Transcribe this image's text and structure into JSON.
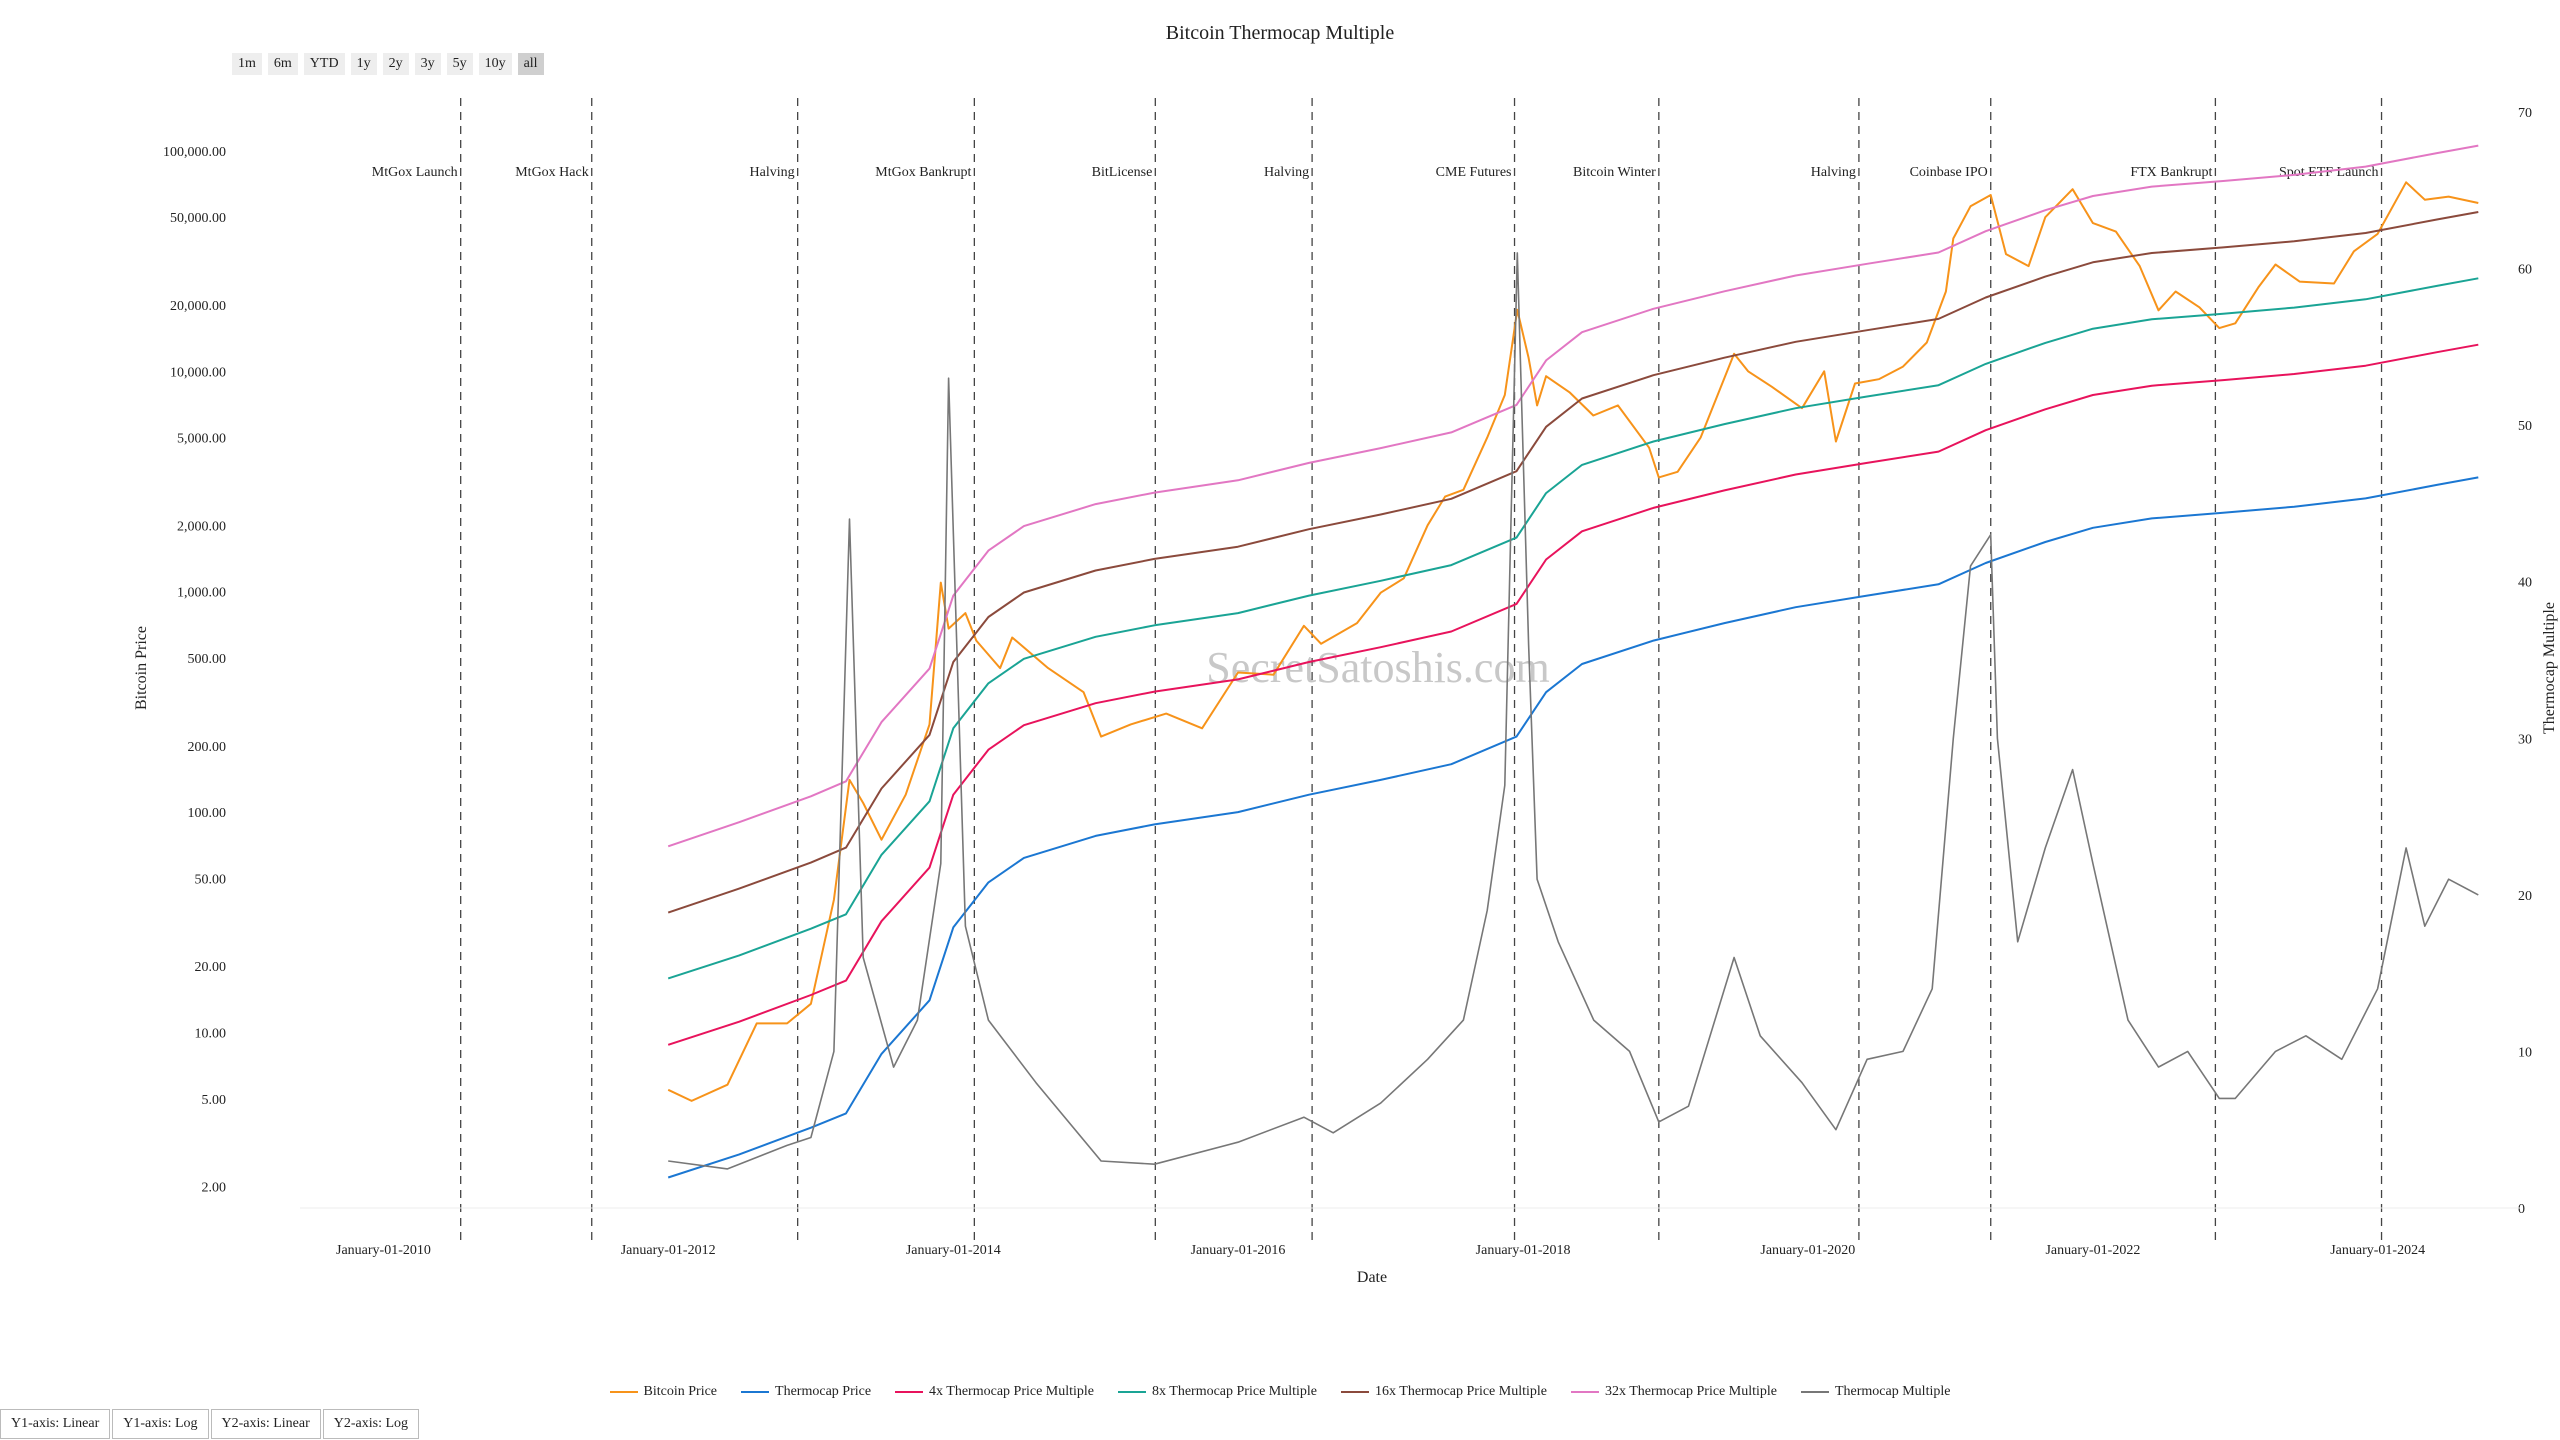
{
  "chart_data": {
    "type": "line",
    "title": "Bitcoin Thermocap Multiple",
    "xlabel": "Date",
    "ylabel": "Bitcoin Price",
    "y2label": "Thermocap Multiple",
    "y_scale": "log",
    "ylim": [
      1.6,
      150000
    ],
    "y2lim": [
      0,
      70
    ],
    "xlim": [
      "2009-06-01",
      "2024-12-31"
    ],
    "grid": false,
    "legend_position": "bottom-center",
    "watermark": "SecretSatoshis.com",
    "x_ticks": [
      {
        "date": "2010-01-01",
        "label": "January-01-2010"
      },
      {
        "date": "2012-01-01",
        "label": "January-01-2012"
      },
      {
        "date": "2014-01-01",
        "label": "January-01-2014"
      },
      {
        "date": "2016-01-01",
        "label": "January-01-2016"
      },
      {
        "date": "2018-01-01",
        "label": "January-01-2018"
      },
      {
        "date": "2020-01-01",
        "label": "January-01-2020"
      },
      {
        "date": "2022-01-01",
        "label": "January-01-2022"
      },
      {
        "date": "2024-01-01",
        "label": "January-01-2024"
      }
    ],
    "y_ticks": [
      {
        "value": 2,
        "label": "2.00"
      },
      {
        "value": 5,
        "label": "5.00"
      },
      {
        "value": 10,
        "label": "10.00"
      },
      {
        "value": 20,
        "label": "20.00"
      },
      {
        "value": 50,
        "label": "50.00"
      },
      {
        "value": 100,
        "label": "100.00"
      },
      {
        "value": 200,
        "label": "200.00"
      },
      {
        "value": 500,
        "label": "500.00"
      },
      {
        "value": 1000,
        "label": "1,000.00"
      },
      {
        "value": 2000,
        "label": "2,000.00"
      },
      {
        "value": 5000,
        "label": "5,000.00"
      },
      {
        "value": 10000,
        "label": "10,000.00"
      },
      {
        "value": 20000,
        "label": "20,000.00"
      },
      {
        "value": 50000,
        "label": "50,000.00"
      },
      {
        "value": 100000,
        "label": "100,000.00"
      }
    ],
    "y2_ticks": [
      {
        "value": 0,
        "label": "0"
      },
      {
        "value": 10,
        "label": "10"
      },
      {
        "value": 20,
        "label": "20"
      },
      {
        "value": 30,
        "label": "30"
      },
      {
        "value": 40,
        "label": "40"
      },
      {
        "value": 50,
        "label": "50"
      },
      {
        "value": 60,
        "label": "60"
      },
      {
        "value": 70,
        "label": "70"
      }
    ],
    "events": [
      {
        "date": "2010-07-18",
        "label": "MtGox Launch"
      },
      {
        "date": "2011-06-19",
        "label": "MtGox Hack"
      },
      {
        "date": "2012-11-28",
        "label": "Halving"
      },
      {
        "date": "2014-02-24",
        "label": "MtGox Bankrupt"
      },
      {
        "date": "2015-06-03",
        "label": "BitLicense"
      },
      {
        "date": "2016-07-09",
        "label": "Halving"
      },
      {
        "date": "2017-12-10",
        "label": "CME Futures"
      },
      {
        "date": "2018-12-15",
        "label": "Bitcoin Winter"
      },
      {
        "date": "2020-05-11",
        "label": "Halving"
      },
      {
        "date": "2021-04-14",
        "label": "Coinbase IPO"
      },
      {
        "date": "2022-11-11",
        "label": "FTX Bankrupt"
      },
      {
        "date": "2024-01-11",
        "label": "Spot ETF Launch"
      }
    ],
    "series": [
      {
        "name": "Bitcoin Price",
        "axis": "y",
        "color": "#f7931a",
        "x": [
          "2012-01-01",
          "2012-03-01",
          "2012-06-01",
          "2012-08-15",
          "2012-11-01",
          "2013-01-01",
          "2013-03-01",
          "2013-04-10",
          "2013-05-15",
          "2013-07-01",
          "2013-09-01",
          "2013-11-01",
          "2013-11-30",
          "2013-12-20",
          "2014-02-01",
          "2014-03-01",
          "2014-05-01",
          "2014-06-01",
          "2014-09-01",
          "2014-12-01",
          "2015-01-15",
          "2015-04-01",
          "2015-07-01",
          "2015-10-01",
          "2016-01-01",
          "2016-04-01",
          "2016-06-18",
          "2016-08-01",
          "2016-11-01",
          "2017-01-01",
          "2017-03-01",
          "2017-05-01",
          "2017-06-15",
          "2017-08-01",
          "2017-10-01",
          "2017-11-15",
          "2017-12-17",
          "2018-01-15",
          "2018-02-06",
          "2018-03-01",
          "2018-05-01",
          "2018-06-30",
          "2018-09-01",
          "2018-11-20",
          "2018-12-15",
          "2019-02-01",
          "2019-04-01",
          "2019-06-26",
          "2019-08-01",
          "2019-10-01",
          "2019-12-17",
          "2020-02-12",
          "2020-03-13",
          "2020-05-01",
          "2020-07-01",
          "2020-09-01",
          "2020-11-01",
          "2020-12-20",
          "2021-01-08",
          "2021-02-21",
          "2021-04-14",
          "2021-05-23",
          "2021-07-20",
          "2021-09-01",
          "2021-11-10",
          "2022-01-01",
          "2022-03-01",
          "2022-05-01",
          "2022-06-18",
          "2022-08-01",
          "2022-10-01",
          "2022-11-21",
          "2023-01-01",
          "2023-03-01",
          "2023-04-14",
          "2023-06-15",
          "2023-09-11",
          "2023-11-01",
          "2024-01-01",
          "2024-03-14",
          "2024-05-01",
          "2024-07-01",
          "2024-09-15"
        ],
        "values": [
          5.5,
          4.9,
          5.8,
          11,
          11,
          13.5,
          40,
          140,
          110,
          75,
          120,
          250,
          1100,
          680,
          800,
          600,
          450,
          620,
          450,
          350,
          220,
          250,
          280,
          240,
          430,
          420,
          700,
          580,
          720,
          990,
          1150,
          2000,
          2700,
          2900,
          5000,
          7800,
          19000,
          11500,
          7000,
          9500,
          8000,
          6300,
          7000,
          4500,
          3300,
          3500,
          5000,
          12000,
          10000,
          8500,
          6800,
          10000,
          4800,
          8800,
          9200,
          10500,
          13500,
          23000,
          40000,
          56000,
          63000,
          34000,
          30000,
          50000,
          67000,
          47000,
          43000,
          30000,
          18900,
          23000,
          19500,
          15700,
          16500,
          24000,
          30500,
          25500,
          25000,
          35000,
          42000,
          72000,
          60000,
          62000,
          58000
        ]
      },
      {
        "name": "Thermocap Price",
        "axis": "y",
        "color": "#1b77d2",
        "x": [
          "2012-01-01",
          "2012-07-01",
          "2013-01-01",
          "2013-04-01",
          "2013-07-01",
          "2013-11-01",
          "2014-01-01",
          "2014-04-01",
          "2014-07-01",
          "2015-01-01",
          "2015-06-01",
          "2016-01-01",
          "2016-07-01",
          "2017-01-01",
          "2017-07-01",
          "2017-12-15",
          "2018-03-01",
          "2018-06-01",
          "2018-12-01",
          "2019-06-01",
          "2019-12-01",
          "2020-06-01",
          "2020-12-01",
          "2021-04-01",
          "2021-09-01",
          "2022-01-01",
          "2022-06-01",
          "2022-12-01",
          "2023-06-01",
          "2023-12-01",
          "2024-06-01",
          "2024-09-15"
        ],
        "values": [
          2.2,
          2.8,
          3.7,
          4.3,
          8,
          14,
          30,
          48,
          62,
          78,
          88,
          100,
          120,
          140,
          165,
          220,
          350,
          470,
          600,
          720,
          850,
          960,
          1080,
          1350,
          1680,
          1950,
          2150,
          2280,
          2430,
          2650,
          3050,
          3300
        ]
      },
      {
        "name": "4x Thermocap Price Multiple",
        "axis": "y",
        "color": "#e8135c",
        "x": [
          "2012-01-01",
          "2012-07-01",
          "2013-01-01",
          "2013-04-01",
          "2013-07-01",
          "2013-11-01",
          "2014-01-01",
          "2014-04-01",
          "2014-07-01",
          "2015-01-01",
          "2015-06-01",
          "2016-01-01",
          "2016-07-01",
          "2017-01-01",
          "2017-07-01",
          "2017-12-15",
          "2018-03-01",
          "2018-06-01",
          "2018-12-01",
          "2019-06-01",
          "2019-12-01",
          "2020-06-01",
          "2020-12-01",
          "2021-04-01",
          "2021-09-01",
          "2022-01-01",
          "2022-06-01",
          "2022-12-01",
          "2023-06-01",
          "2023-12-01",
          "2024-06-01",
          "2024-09-15"
        ],
        "values": [
          8.8,
          11.2,
          14.8,
          17.2,
          32,
          56,
          120,
          192,
          248,
          312,
          352,
          400,
          480,
          560,
          660,
          880,
          1400,
          1880,
          2400,
          2880,
          3400,
          3840,
          4320,
          5400,
          6720,
          7800,
          8600,
          9120,
          9720,
          10600,
          12200,
          13200
        ]
      },
      {
        "name": "8x Thermocap Price Multiple",
        "axis": "y",
        "color": "#1aa495",
        "x": [
          "2012-01-01",
          "2012-07-01",
          "2013-01-01",
          "2013-04-01",
          "2013-07-01",
          "2013-11-01",
          "2014-01-01",
          "2014-04-01",
          "2014-07-01",
          "2015-01-01",
          "2015-06-01",
          "2016-01-01",
          "2016-07-01",
          "2017-01-01",
          "2017-07-01",
          "2017-12-15",
          "2018-03-01",
          "2018-06-01",
          "2018-12-01",
          "2019-06-01",
          "2019-12-01",
          "2020-06-01",
          "2020-12-01",
          "2021-04-01",
          "2021-09-01",
          "2022-01-01",
          "2022-06-01",
          "2022-12-01",
          "2023-06-01",
          "2023-12-01",
          "2024-06-01",
          "2024-09-15"
        ],
        "values": [
          17.6,
          22.4,
          29.6,
          34.4,
          64,
          112,
          240,
          384,
          496,
          624,
          704,
          800,
          960,
          1120,
          1320,
          1760,
          2800,
          3760,
          4800,
          5760,
          6800,
          7680,
          8640,
          10800,
          13440,
          15600,
          17200,
          18240,
          19440,
          21200,
          24400,
          26400
        ]
      },
      {
        "name": "16x Thermocap Price Multiple",
        "axis": "y",
        "color": "#8b4a3c",
        "x": [
          "2012-01-01",
          "2012-07-01",
          "2013-01-01",
          "2013-04-01",
          "2013-07-01",
          "2013-11-01",
          "2014-01-01",
          "2014-04-01",
          "2014-07-01",
          "2015-01-01",
          "2015-06-01",
          "2016-01-01",
          "2016-07-01",
          "2017-01-01",
          "2017-07-01",
          "2017-12-15",
          "2018-03-01",
          "2018-06-01",
          "2018-12-01",
          "2019-06-01",
          "2019-12-01",
          "2020-06-01",
          "2020-12-01",
          "2021-04-01",
          "2021-09-01",
          "2022-01-01",
          "2022-06-01",
          "2022-12-01",
          "2023-06-01",
          "2023-12-01",
          "2024-06-01",
          "2024-09-15"
        ],
        "values": [
          35,
          45,
          59,
          69,
          128,
          224,
          480,
          768,
          992,
          1248,
          1408,
          1600,
          1920,
          2240,
          2640,
          3520,
          5600,
          7520,
          9600,
          11520,
          13600,
          15360,
          17280,
          21600,
          26880,
          31200,
          34400,
          36480,
          38880,
          42400,
          48800,
          52800
        ]
      },
      {
        "name": "32x Thermocap Price Multiple",
        "axis": "y",
        "color": "#e277c3",
        "x": [
          "2012-01-01",
          "2012-07-01",
          "2013-01-01",
          "2013-04-01",
          "2013-07-01",
          "2013-11-01",
          "2014-01-01",
          "2014-04-01",
          "2014-07-01",
          "2015-01-01",
          "2015-06-01",
          "2016-01-01",
          "2016-07-01",
          "2017-01-01",
          "2017-07-01",
          "2017-12-15",
          "2018-03-01",
          "2018-06-01",
          "2018-12-01",
          "2019-06-01",
          "2019-12-01",
          "2020-06-01",
          "2020-12-01",
          "2021-04-01",
          "2021-09-01",
          "2022-01-01",
          "2022-06-01",
          "2022-12-01",
          "2023-06-01",
          "2023-12-01",
          "2024-06-01",
          "2024-09-15"
        ],
        "values": [
          70,
          90,
          118,
          138,
          256,
          448,
          960,
          1536,
          1984,
          2496,
          2816,
          3200,
          3840,
          4480,
          5280,
          7040,
          11200,
          15040,
          19200,
          23040,
          27200,
          30720,
          34560,
          43200,
          53760,
          62400,
          68800,
          72960,
          77760,
          84800,
          97600,
          105600
        ]
      },
      {
        "name": "Thermocap Multiple",
        "axis": "y2",
        "color": "#777777",
        "x": [
          "2012-01-01",
          "2012-06-01",
          "2012-11-01",
          "2013-01-01",
          "2013-03-01",
          "2013-04-10",
          "2013-05-15",
          "2013-08-01",
          "2013-10-01",
          "2013-11-30",
          "2013-12-20",
          "2014-02-01",
          "2014-04-01",
          "2014-08-01",
          "2015-01-15",
          "2015-06-01",
          "2016-01-01",
          "2016-06-18",
          "2016-09-01",
          "2017-01-01",
          "2017-05-01",
          "2017-08-01",
          "2017-10-01",
          "2017-11-15",
          "2017-12-17",
          "2018-01-15",
          "2018-02-06",
          "2018-04-01",
          "2018-07-01",
          "2018-10-01",
          "2018-12-15",
          "2019-03-01",
          "2019-06-26",
          "2019-09-01",
          "2019-12-17",
          "2020-03-13",
          "2020-06-01",
          "2020-09-01",
          "2020-11-15",
          "2021-01-08",
          "2021-02-21",
          "2021-04-14",
          "2021-05-01",
          "2021-06-22",
          "2021-09-01",
          "2021-11-10",
          "2022-01-01",
          "2022-04-01",
          "2022-06-18",
          "2022-09-01",
          "2022-11-21",
          "2023-01-01",
          "2023-04-14",
          "2023-07-01",
          "2023-10-01",
          "2024-01-01",
          "2024-03-14",
          "2024-05-01",
          "2024-07-01",
          "2024-09-15"
        ],
        "values": [
          3,
          2.5,
          4,
          4.5,
          10,
          44,
          16,
          9,
          12,
          22,
          53,
          18,
          12,
          8,
          3,
          2.8,
          4.2,
          5.8,
          4.8,
          6.7,
          9.5,
          12,
          19,
          27,
          61,
          36,
          21,
          17,
          12,
          10,
          5.5,
          6.5,
          16,
          11,
          8,
          5,
          9.5,
          10,
          14,
          30,
          41,
          43,
          30,
          17,
          23,
          28,
          22,
          12,
          9,
          10,
          7,
          7,
          10,
          11,
          9.5,
          14,
          23,
          18,
          21,
          20
        ]
      }
    ]
  },
  "toolbar": {
    "range_buttons": [
      "1m",
      "6m",
      "YTD",
      "1y",
      "2y",
      "3y",
      "5y",
      "10y",
      "all"
    ],
    "active_range": "all"
  },
  "axis_controls": [
    "Y1-axis: Linear",
    "Y1-axis: Log",
    "Y2-axis: Linear",
    "Y2-axis: Log"
  ]
}
